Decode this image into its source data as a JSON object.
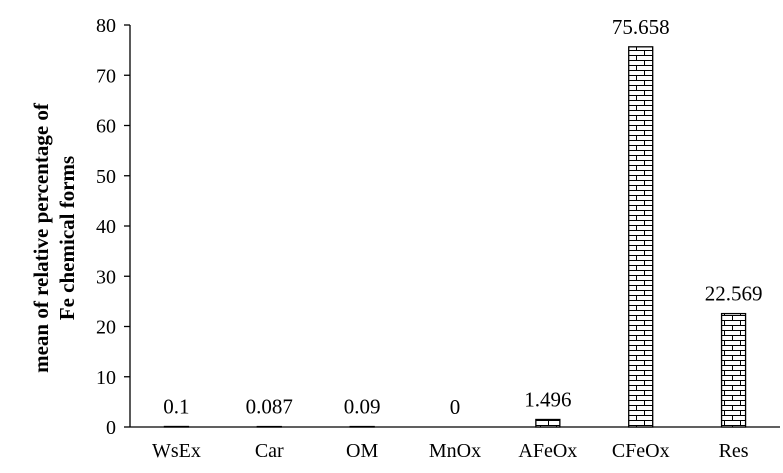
{
  "chart_data": {
    "type": "bar",
    "title": "",
    "xlabel": "",
    "ylabel_line1": "mean of relative percentage of",
    "ylabel_line2": "Fe chemical forms",
    "categories": [
      "WsEx",
      "Car",
      "OM",
      "MnOx",
      "AFeOx",
      "CFeOx",
      "Res"
    ],
    "values": [
      0.1,
      0.087,
      0.09,
      0,
      1.496,
      75.658,
      22.569
    ],
    "data_labels": [
      "0.1",
      "0.087",
      "0.09",
      "0",
      "1.496",
      "75.658",
      "22.569"
    ],
    "ylim": [
      0,
      80
    ],
    "yticks": [
      0,
      10,
      20,
      30,
      40,
      50,
      60,
      70,
      80
    ],
    "grid": false,
    "legend": "none",
    "bar_pattern": "brick",
    "bar_color": "#000000",
    "background": "#ffffff"
  }
}
